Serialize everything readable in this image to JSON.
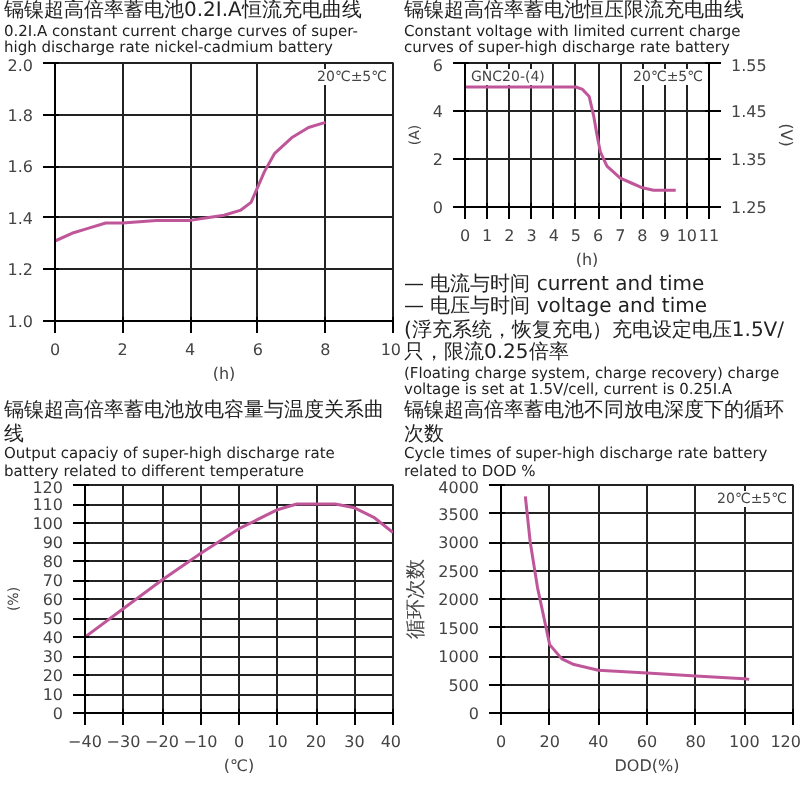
{
  "chart_data": [
    {
      "type": "line",
      "title": "镉镍超高倍率蓄电池0.2I.A恒流充电曲线",
      "subtitle": "0.2I.A constant current charge curves of super-high discharge rate nickel-cadmium battery",
      "xlabel": "(h)",
      "x": [
        0,
        0.5,
        1,
        1.5,
        2,
        3,
        4,
        4.5,
        5,
        5.5,
        5.8,
        6,
        6.2,
        6.5,
        7,
        7.5,
        8
      ],
      "series": [
        {
          "color": "#c0569a",
          "values": [
            1.31,
            1.34,
            1.36,
            1.38,
            1.38,
            1.39,
            1.39,
            1.4,
            1.41,
            1.43,
            1.46,
            1.52,
            1.58,
            1.65,
            1.71,
            1.75,
            1.77
          ]
        }
      ],
      "xlim": [
        0,
        10
      ],
      "xticks": [
        0,
        2,
        4,
        6,
        8,
        10
      ],
      "ylim": [
        1.0,
        2.0
      ],
      "yticks": [
        {
          "value": 1.0,
          "label": "1.0"
        },
        {
          "value": 1.2,
          "label": "1.2"
        },
        {
          "value": 1.4,
          "label": "1.4"
        },
        {
          "value": 1.6,
          "label": "1.6"
        },
        {
          "value": 1.8,
          "label": "1.8"
        },
        {
          "value": 2.0,
          "label": "2.0"
        }
      ],
      "grid": true,
      "annotations": [
        "20℃±5℃"
      ]
    },
    {
      "type": "line",
      "title": "镉镍超高倍率蓄电池恒压限流充电曲线",
      "subtitle": "Constant voltage with limited current charge curves of super-high discharge rate battery",
      "xlabel": "(h)",
      "ylabel": "(A)",
      "y2label": "(V)",
      "x": [
        0,
        1,
        2,
        3,
        4,
        5,
        5.3,
        5.6,
        5.8,
        5.95,
        6.1,
        6.4,
        7,
        7.5,
        8,
        8.5,
        9,
        9.5
      ],
      "series": [
        {
          "color": "#c0569a",
          "values": [
            5,
            5,
            5,
            5,
            5,
            5,
            4.9,
            4.6,
            3.8,
            3,
            2.3,
            1.7,
            1.2,
            1,
            0.8,
            0.7,
            0.7,
            0.7
          ]
        }
      ],
      "xlim": [
        0,
        11
      ],
      "xticks": [
        0,
        1,
        2,
        3,
        4,
        5,
        6,
        7,
        8,
        9,
        10,
        11
      ],
      "ylim": [
        0,
        6
      ],
      "yticks": [
        0,
        2,
        4,
        6
      ],
      "y2lim": [
        1.25,
        1.55
      ],
      "y2ticks": [
        1.25,
        1.35,
        1.45,
        1.55
      ],
      "grid": true,
      "annotations": [
        "20℃±5℃",
        "GNC20-(4)",
        "— 电流与时间 current and time",
        "— 电压与时间 voltage and time",
        "(浮充系统，恢复充电）充电设定电压1.5V/只，限流0.25倍率",
        "(Floating charge system, charge recovery) charge voltage is set at 1.5V/cell, current is 0.25I.A"
      ]
    },
    {
      "type": "line",
      "title": "镉镍超高倍率蓄电池放电容量与温度关系曲线",
      "subtitle": "Output capaciy of super-high discharge rate battery related to different temperature",
      "xlabel": "(℃)",
      "ylabel": "(%)",
      "x": [
        -40,
        -30,
        -20,
        -10,
        0,
        10,
        15,
        20,
        25,
        30,
        35,
        40
      ],
      "series": [
        {
          "color": "#c0569a",
          "values": [
            40,
            55,
            70,
            84,
            97,
            107,
            110,
            110,
            110,
            108,
            103,
            95
          ]
        }
      ],
      "xlim": [
        -40,
        40
      ],
      "xticks": [
        -40,
        -30,
        -20,
        -10,
        0,
        10,
        20,
        30,
        40
      ],
      "ylim": [
        0,
        120
      ],
      "yticks": [
        0,
        10,
        20,
        30,
        40,
        50,
        60,
        70,
        80,
        90,
        100,
        110,
        120
      ],
      "grid": true
    },
    {
      "type": "line",
      "title": "镉镍超高倍率蓄电池不同放电深度下的循环次数",
      "subtitle": "Cycle times of super-high discharge rate battery related to DOD %",
      "xlabel": "DOD(%)",
      "ylabel": "循环次数",
      "x": [
        10,
        12,
        15,
        18,
        20,
        25,
        30,
        40,
        60,
        80,
        100,
        102
      ],
      "series": [
        {
          "color": "#c0569a",
          "values": [
            3800,
            3000,
            2200,
            1600,
            1200,
            950,
            850,
            750,
            700,
            650,
            600,
            590
          ]
        }
      ],
      "xlim": [
        0,
        120
      ],
      "xticks": [
        0,
        20,
        40,
        60,
        80,
        100,
        120
      ],
      "ylim": [
        0,
        4000
      ],
      "yticks": [
        0,
        500,
        1000,
        1500,
        2000,
        2500,
        3000,
        3500,
        4000
      ],
      "grid": true,
      "annotations": [
        "20℃±5℃"
      ]
    }
  ]
}
